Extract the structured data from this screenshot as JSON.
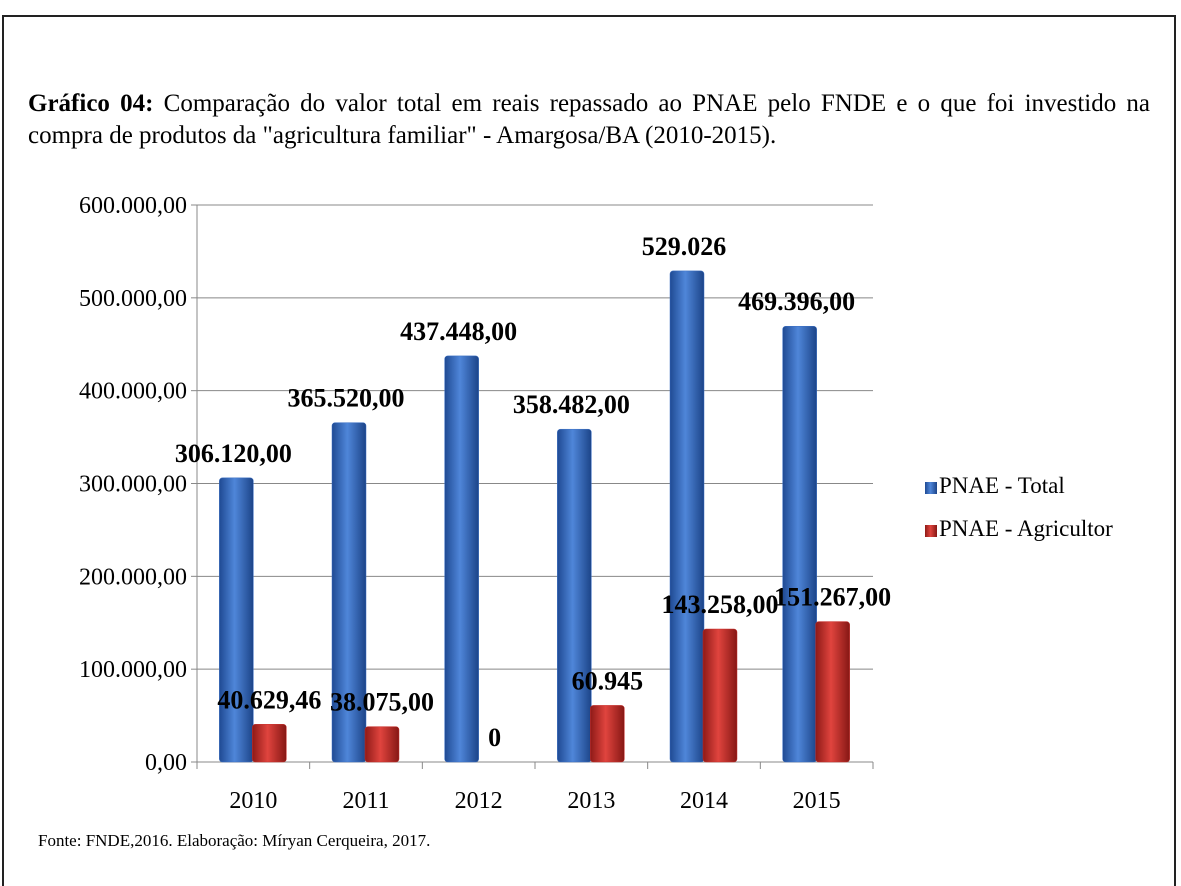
{
  "chart_data": {
    "type": "bar",
    "title_label": "Gráfico 04:",
    "title": "Comparação do valor total em reais repassado ao PNAE pelo FNDE e o que foi investido na compra de produtos da \"agricultura familiar\" -  Amargosa/BA (2010-2015).",
    "source": "Fonte: FNDE,2016. Elaboração: Míryan Cerqueira, 2017.",
    "categories": [
      "2010",
      "2011",
      "2012",
      "2013",
      "2014",
      "2015"
    ],
    "series": [
      {
        "name": "PNAE - Total",
        "color": "#3a6fc4",
        "values": [
          306120,
          365520,
          437448,
          358482,
          529026,
          469396
        ],
        "value_labels": [
          "306.120,00",
          "365.520,00",
          "437.448,00",
          "358.482,00",
          "529.026",
          "469.396,00"
        ]
      },
      {
        "name": "PNAE - Agricultor",
        "color": "#c8302c",
        "values": [
          40629.46,
          38075,
          0,
          60945,
          143258,
          151267
        ],
        "value_labels": [
          "40.629,46",
          "38.075,00",
          "0",
          "60.945",
          "143.258,00",
          "151.267,00"
        ]
      }
    ],
    "ylim": [
      0,
      600000
    ],
    "yticks": [
      {
        "value": 0,
        "label": "0,00"
      },
      {
        "value": 100000,
        "label": "100.000,00"
      },
      {
        "value": 200000,
        "label": "200.000,00"
      },
      {
        "value": 300000,
        "label": "300.000,00"
      },
      {
        "value": 400000,
        "label": "400.000,00"
      },
      {
        "value": 500000,
        "label": "500.000,00"
      },
      {
        "value": 600000,
        "label": "600.000,00"
      }
    ],
    "grid": true
  }
}
